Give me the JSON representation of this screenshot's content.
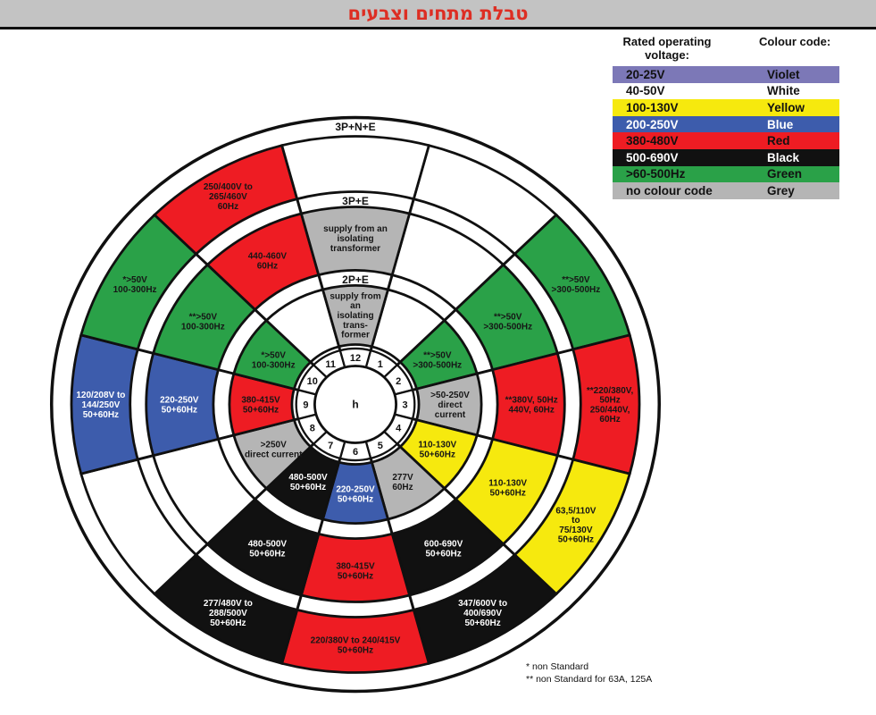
{
  "page": {
    "title": "טבלת מתחים וצבעים"
  },
  "legend": {
    "header_voltage": "Rated operating voltage:",
    "header_colour": "Colour code:",
    "rows": [
      {
        "voltage": "20-25V",
        "colour": "Violet",
        "bg": "#7c78b7",
        "fg": "#111111"
      },
      {
        "voltage": "40-50V",
        "colour": "White",
        "bg": "#ffffff",
        "fg": "#111111"
      },
      {
        "voltage": "100-130V",
        "colour": "Yellow",
        "bg": "#f6e90e",
        "fg": "#111111"
      },
      {
        "voltage": "200-250V",
        "colour": "Blue",
        "bg": "#3d5cac",
        "fg": "#ffffff"
      },
      {
        "voltage": "380-480V",
        "colour": "Red",
        "bg": "#ee1c23",
        "fg": "#111111"
      },
      {
        "voltage": "500-690V",
        "colour": "Black",
        "bg": "#111111",
        "fg": "#ffffff"
      },
      {
        "voltage": ">60-500Hz",
        "colour": "Green",
        "bg": "#2aa148",
        "fg": "#111111"
      },
      {
        "voltage": "no colour code",
        "colour": "Grey",
        "bg": "#b5b5b5",
        "fg": "#111111"
      }
    ]
  },
  "footnotes": {
    "line1": "* non Standard",
    "line2": "** non Standard for 63A, 125A"
  },
  "colors": {
    "white": "#ffffff",
    "grey": "#b5b5b5",
    "red": "#ee1c23",
    "green": "#2aa148",
    "blue": "#3d5cac",
    "yellow": "#f6e90e",
    "black": "#111111",
    "violet": "#7c78b7"
  },
  "wheel": {
    "center_label": "h",
    "hour_numbers": [
      "1",
      "2",
      "3",
      "4",
      "5",
      "6",
      "7",
      "8",
      "9",
      "10",
      "11",
      "12"
    ],
    "rings": [
      {
        "name": "3P+N+E",
        "sectors": [
          {
            "hour": 1,
            "color": "white",
            "lines": []
          },
          {
            "hour": 2,
            "color": "green",
            "lines": [
              "**>50V",
              ">300-500Hz"
            ]
          },
          {
            "hour": 3,
            "color": "red",
            "lines": [
              "**220/380V,",
              "50Hz",
              "250/440V,",
              "60Hz"
            ]
          },
          {
            "hour": 4,
            "color": "yellow",
            "lines": [
              "63,5/110V",
              "to",
              "75/130V",
              "50+60Hz"
            ]
          },
          {
            "hour": 5,
            "color": "black",
            "lines": [
              "347/600V to",
              "400/690V",
              "50+60Hz"
            ]
          },
          {
            "hour": 6,
            "color": "red",
            "lines": [
              "220/380V to 240/415V",
              "50+60Hz"
            ]
          },
          {
            "hour": 7,
            "color": "black",
            "lines": [
              "277/480V to",
              "288/500V",
              "50+60Hz"
            ]
          },
          {
            "hour": 8,
            "color": "white",
            "lines": []
          },
          {
            "hour": 9,
            "color": "blue",
            "lines": [
              "120/208V to",
              "144/250V",
              "50+60Hz"
            ]
          },
          {
            "hour": 10,
            "color": "green",
            "lines": [
              "*>50V",
              "100-300Hz"
            ]
          },
          {
            "hour": 11,
            "color": "red",
            "lines": [
              "250/400V to",
              "265/460V",
              "60Hz"
            ]
          },
          {
            "hour": 12,
            "color": "white",
            "lines": []
          }
        ]
      },
      {
        "name": "3P+E",
        "sectors": [
          {
            "hour": 1,
            "color": "white",
            "lines": []
          },
          {
            "hour": 2,
            "color": "green",
            "lines": [
              "**>50V",
              ">300-500Hz"
            ]
          },
          {
            "hour": 3,
            "color": "red",
            "lines": [
              "**380V, 50Hz",
              "440V, 60Hz"
            ]
          },
          {
            "hour": 4,
            "color": "yellow",
            "lines": [
              "110-130V",
              "50+60Hz"
            ]
          },
          {
            "hour": 5,
            "color": "black",
            "lines": [
              "600-690V",
              "50+60Hz"
            ]
          },
          {
            "hour": 6,
            "color": "red",
            "lines": [
              "380-415V",
              "50+60Hz"
            ]
          },
          {
            "hour": 7,
            "color": "black",
            "lines": [
              "480-500V",
              "50+60Hz"
            ]
          },
          {
            "hour": 8,
            "color": "white",
            "lines": []
          },
          {
            "hour": 9,
            "color": "blue",
            "lines": [
              "220-250V",
              "50+60Hz"
            ]
          },
          {
            "hour": 10,
            "color": "green",
            "lines": [
              "**>50V",
              "100-300Hz"
            ]
          },
          {
            "hour": 11,
            "color": "red",
            "lines": [
              "440-460V",
              "60Hz"
            ]
          },
          {
            "hour": 12,
            "color": "grey",
            "lines": [
              "supply from an",
              "isolating",
              "transformer"
            ]
          }
        ]
      },
      {
        "name": "2P+E",
        "sectors": [
          {
            "hour": 1,
            "color": "white",
            "lines": []
          },
          {
            "hour": 2,
            "color": "green",
            "lines": [
              "**>50V",
              ">300-500Hz"
            ]
          },
          {
            "hour": 3,
            "color": "grey",
            "lines": [
              ">50-250V",
              "direct",
              "current"
            ]
          },
          {
            "hour": 4,
            "color": "yellow",
            "lines": [
              "110-130V",
              "50+60Hz"
            ]
          },
          {
            "hour": 5,
            "color": "grey",
            "lines": [
              "277V",
              "60Hz"
            ]
          },
          {
            "hour": 6,
            "color": "blue",
            "lines": [
              "220-250V",
              "50+60Hz"
            ]
          },
          {
            "hour": 7,
            "color": "black",
            "lines": [
              "480-500V",
              "50+60Hz"
            ]
          },
          {
            "hour": 8,
            "color": "grey",
            "lines": [
              ">250V",
              "direct current"
            ]
          },
          {
            "hour": 9,
            "color": "red",
            "lines": [
              "380-415V",
              "50+60Hz"
            ]
          },
          {
            "hour": 10,
            "color": "green",
            "lines": [
              "*>50V",
              "100-300Hz"
            ]
          },
          {
            "hour": 11,
            "color": "white",
            "lines": []
          },
          {
            "hour": 12,
            "color": "grey",
            "lines": [
              "supply from",
              "an",
              "isolating",
              "trans-",
              "former"
            ]
          }
        ]
      }
    ]
  }
}
